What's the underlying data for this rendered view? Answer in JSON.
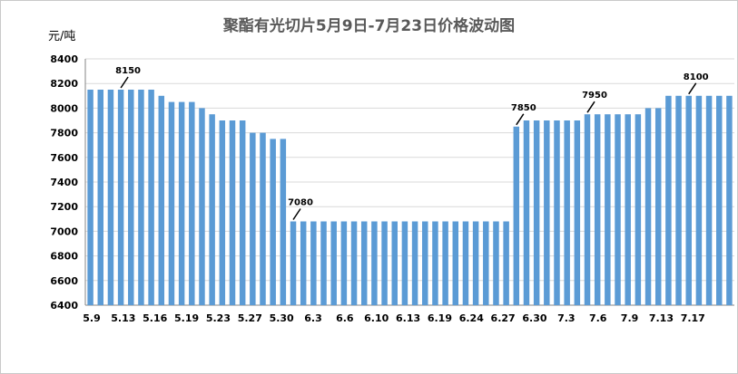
{
  "title": "聚酯有光切片5月9日-7月23日价格波动图",
  "unit": "元/吨",
  "colors": {
    "bar": "#5b9bd5",
    "grid": "#d9d9d9",
    "text": "#595959"
  },
  "chart_data": {
    "type": "bar",
    "title": "聚酯有光切片5月9日-7月23日价格波动图",
    "ylabel": "元/吨",
    "xlabel": "",
    "ylim": [
      6400,
      8400
    ],
    "ytick_step": 200,
    "grid": true,
    "legend": "none",
    "x_tick_labels": [
      "5.9",
      "5.13",
      "5.16",
      "5.19",
      "5.23",
      "5.27",
      "5.30",
      "6.3",
      "6.6",
      "6.10",
      "6.13",
      "6.19",
      "6.24",
      "6.27",
      "6.30",
      "7.3",
      "7.6",
      "7.9",
      "7.13",
      "7.17"
    ],
    "values": [
      8150,
      8150,
      8150,
      8150,
      8150,
      8150,
      8150,
      8100,
      8050,
      8050,
      8050,
      8000,
      7950,
      7900,
      7900,
      7900,
      7800,
      7800,
      7750,
      7750,
      7080,
      7080,
      7080,
      7080,
      7080,
      7080,
      7080,
      7080,
      7080,
      7080,
      7080,
      7080,
      7080,
      7080,
      7080,
      7080,
      7080,
      7080,
      7080,
      7080,
      7080,
      7080,
      7850,
      7900,
      7900,
      7900,
      7900,
      7900,
      7900,
      7950,
      7950,
      7950,
      7950,
      7950,
      7950,
      8000,
      8000,
      8100,
      8100,
      8100,
      8100,
      8100,
      8100,
      8100
    ],
    "annotations": [
      {
        "index": 3,
        "value": 8150,
        "label": "8150"
      },
      {
        "index": 20,
        "value": 7080,
        "label": "7080"
      },
      {
        "index": 42,
        "value": 7850,
        "label": "7850"
      },
      {
        "index": 49,
        "value": 7950,
        "label": "7950"
      },
      {
        "index": 59,
        "value": 8100,
        "label": "8100"
      }
    ]
  }
}
